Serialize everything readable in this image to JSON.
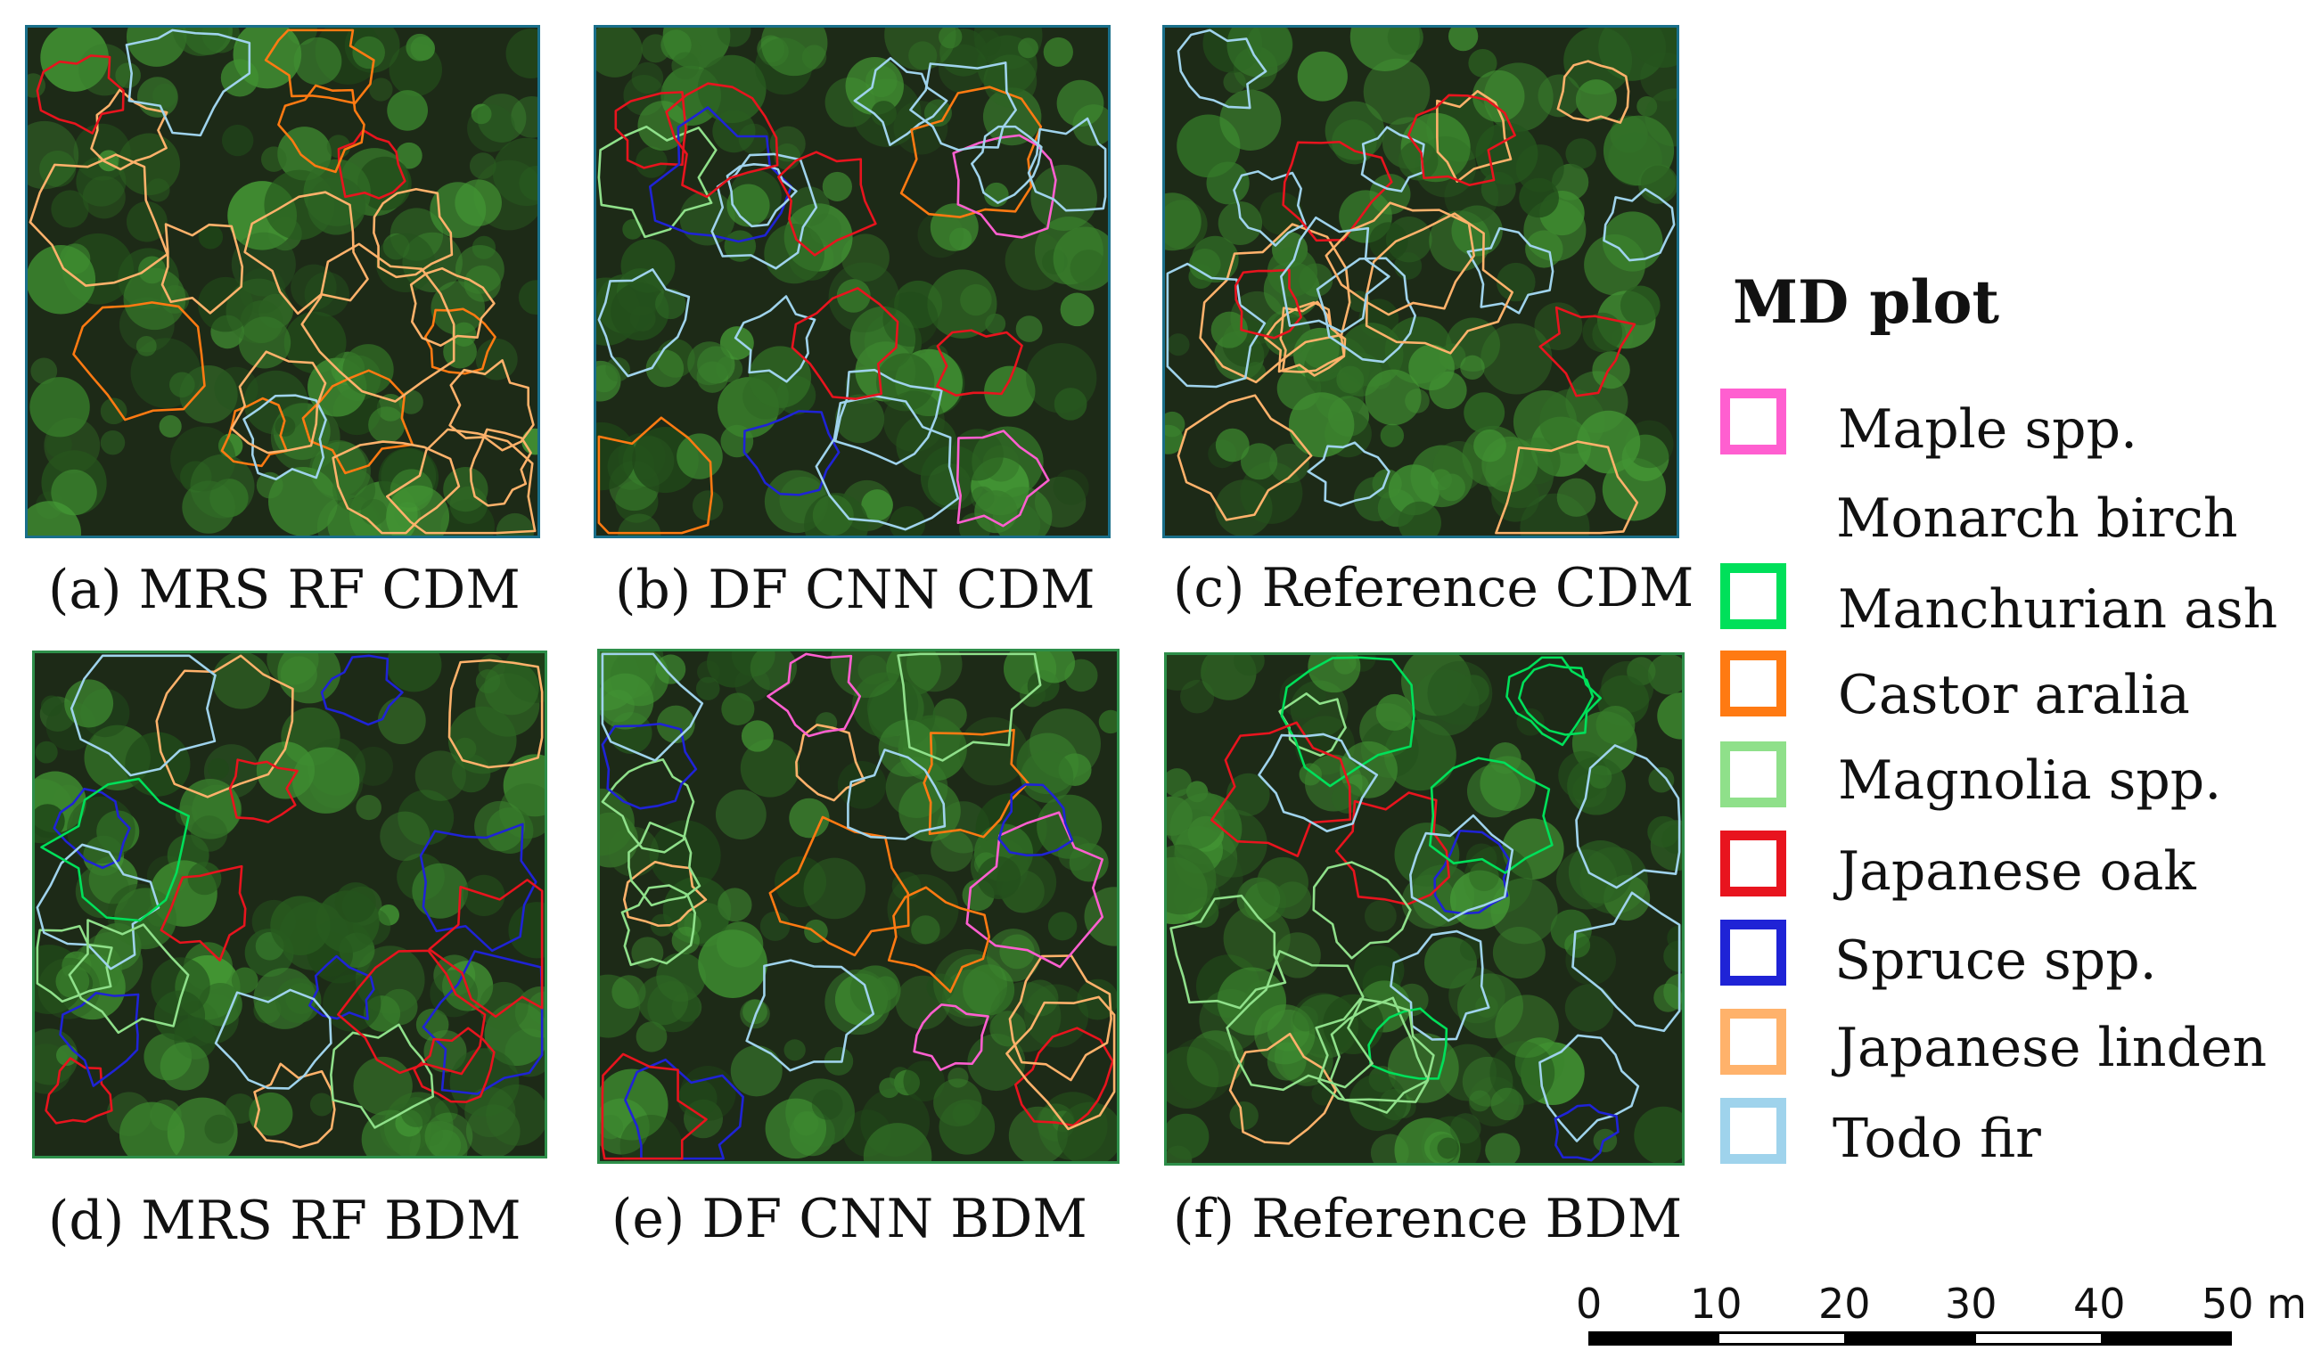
{
  "panels": [
    {
      "id": "a",
      "caption": "(a) MRS RF CDM"
    },
    {
      "id": "b",
      "caption": "(b) DF CNN CDM"
    },
    {
      "id": "c",
      "caption": "(c) Reference CDM"
    },
    {
      "id": "d",
      "caption": "(d) MRS RF BDM"
    },
    {
      "id": "e",
      "caption": "(e) DF CNN BDM"
    },
    {
      "id": "f",
      "caption": "(f) Reference BDM"
    }
  ],
  "legend": {
    "title": "MD plot",
    "items": [
      {
        "label": "Maple spp.",
        "color": "#ff5fd0"
      },
      {
        "label": "Monarch birch",
        "color": "#ffffff"
      },
      {
        "label": "Manchurian ash",
        "color": "#00e05a"
      },
      {
        "label": "Castor aralia",
        "color": "#ff7a12"
      },
      {
        "label": "Magnolia spp.",
        "color": "#8fe08a"
      },
      {
        "label": "Japanese oak",
        "color": "#e8141e"
      },
      {
        "label": "Spruce spp.",
        "color": "#1f23d6"
      },
      {
        "label": "Japanese linden",
        "color": "#ffb26b"
      },
      {
        "label": "Todo fir",
        "color": "#9fd3ec"
      }
    ]
  },
  "scale_bar": {
    "ticks": [
      "0",
      "10",
      "20",
      "30",
      "40"
    ],
    "last_tick": "50 m"
  }
}
